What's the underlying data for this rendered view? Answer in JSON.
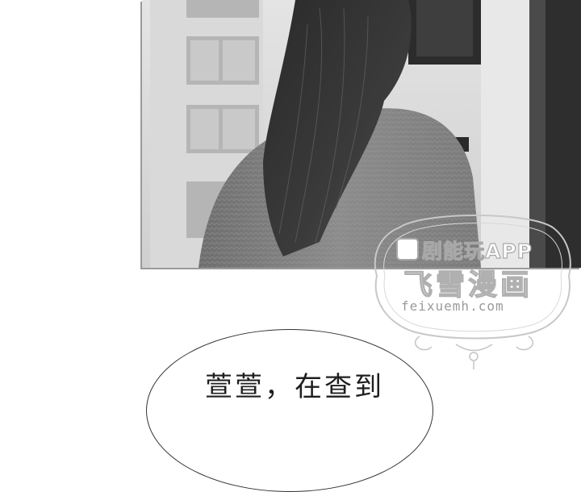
{
  "watermark": {
    "app_text": "剧能玩APP",
    "brand": "飞雪漫画",
    "url": "feixuemh.com"
  },
  "bubble": {
    "text": "萱萱，在查到"
  }
}
